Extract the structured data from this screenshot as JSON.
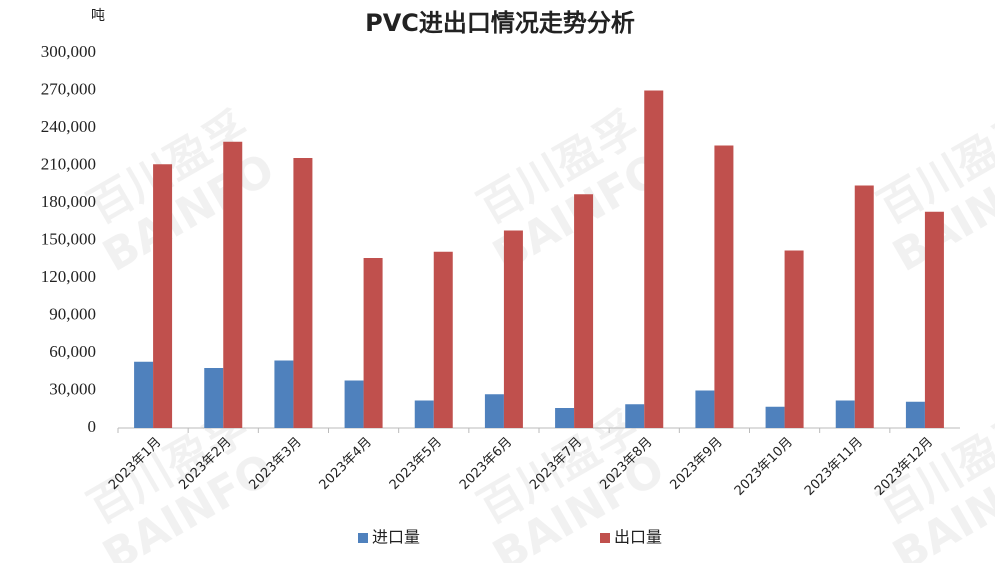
{
  "chart_data": {
    "type": "bar",
    "title": "PVC进出口情况走势分析",
    "unit": "吨",
    "watermark": [
      "百川盈孚",
      "BAINFO"
    ],
    "categories": [
      "2023年1月",
      "2023年2月",
      "2023年3月",
      "2023年4月",
      "2023年5月",
      "2023年6月",
      "2023年7月",
      "2023年8月",
      "2023年9月",
      "2023年10月",
      "2023年11月",
      "2023年12月"
    ],
    "series": [
      {
        "name": "进口量",
        "color": "#4f81bd",
        "values": [
          53000,
          48000,
          54000,
          38000,
          22000,
          27000,
          16000,
          19000,
          30000,
          17000,
          22000,
          21000
        ]
      },
      {
        "name": "出口量",
        "color": "#c0504d",
        "values": [
          211000,
          229000,
          216000,
          136000,
          141000,
          158000,
          187000,
          270000,
          226000,
          142000,
          194000,
          173000
        ]
      }
    ],
    "ylim": [
      0,
      300000
    ],
    "yticks": [
      0,
      {
        "value": 30000,
        "label": "30,000"
      },
      {
        "value": 60000,
        "label": "60,000"
      },
      {
        "value": 90000,
        "label": "90,000"
      },
      {
        "value": 120000,
        "label": "120,000"
      },
      {
        "value": 150000,
        "label": "150,000"
      },
      {
        "value": 180000,
        "label": "180,000"
      },
      {
        "value": 210000,
        "label": "210,000"
      },
      {
        "value": 240000,
        "label": "240,000"
      },
      {
        "value": 270000,
        "label": "270,000"
      },
      {
        "value": 300000,
        "label": "300,000"
      }
    ],
    "grid": false,
    "legend": "bottom"
  }
}
